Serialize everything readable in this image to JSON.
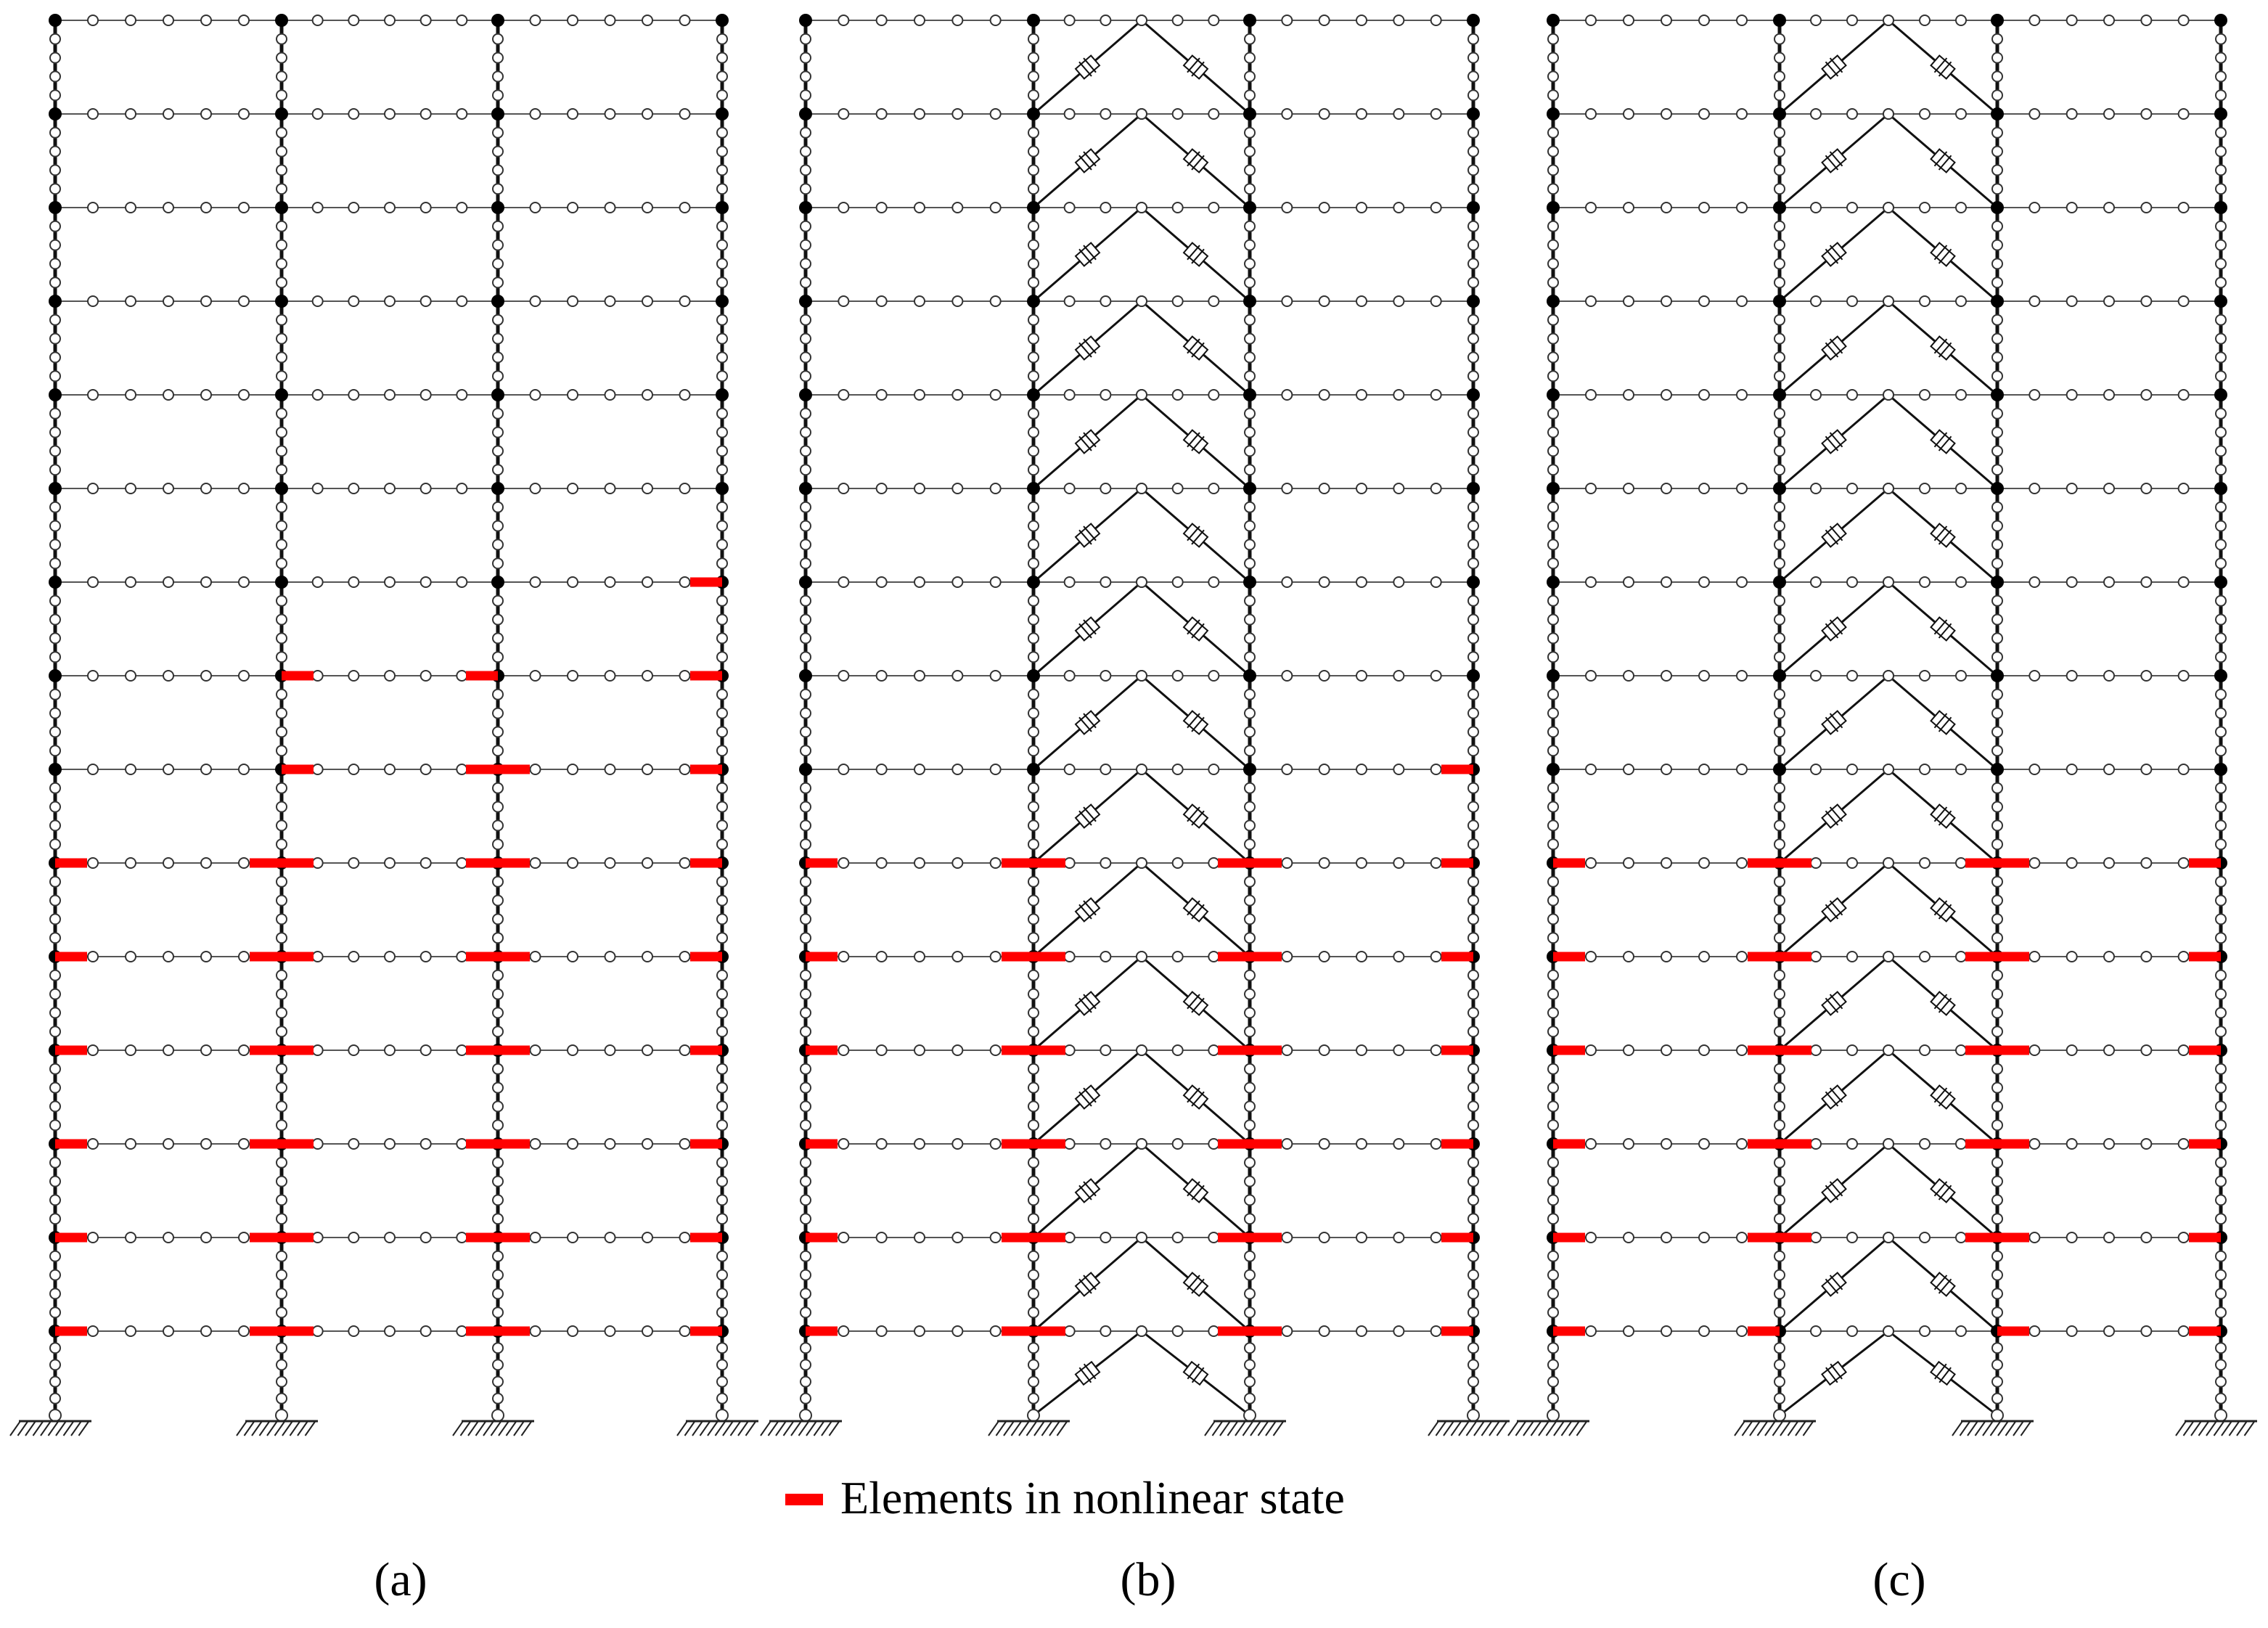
{
  "figure": {
    "legend": {
      "label": "Elements in nonlinear state",
      "swatch_color": "#ff0000"
    },
    "panels": [
      {
        "id": "a",
        "caption": "(a)",
        "braced": false,
        "nonlinear_segments": [
          {
            "story": 6,
            "col": 3,
            "side": "L"
          },
          {
            "story": 7,
            "col": 1,
            "side": "R"
          },
          {
            "story": 7,
            "col": 2,
            "side": "L"
          },
          {
            "story": 7,
            "col": 3,
            "side": "L"
          },
          {
            "story": 8,
            "col": 1,
            "side": "R"
          },
          {
            "story": 8,
            "col": 2,
            "side": "B"
          },
          {
            "story": 8,
            "col": 3,
            "side": "L"
          },
          {
            "story": 9,
            "col": 0,
            "side": "R"
          },
          {
            "story": 9,
            "col": 1,
            "side": "B"
          },
          {
            "story": 9,
            "col": 2,
            "side": "B"
          },
          {
            "story": 9,
            "col": 3,
            "side": "L"
          },
          {
            "story": 10,
            "col": 0,
            "side": "R"
          },
          {
            "story": 10,
            "col": 1,
            "side": "B"
          },
          {
            "story": 10,
            "col": 2,
            "side": "B"
          },
          {
            "story": 10,
            "col": 3,
            "side": "L"
          },
          {
            "story": 11,
            "col": 0,
            "side": "R"
          },
          {
            "story": 11,
            "col": 1,
            "side": "B"
          },
          {
            "story": 11,
            "col": 2,
            "side": "B"
          },
          {
            "story": 11,
            "col": 3,
            "side": "L"
          },
          {
            "story": 12,
            "col": 0,
            "side": "R"
          },
          {
            "story": 12,
            "col": 1,
            "side": "B"
          },
          {
            "story": 12,
            "col": 2,
            "side": "B"
          },
          {
            "story": 12,
            "col": 3,
            "side": "L"
          },
          {
            "story": 13,
            "col": 0,
            "side": "R"
          },
          {
            "story": 13,
            "col": 1,
            "side": "B"
          },
          {
            "story": 13,
            "col": 2,
            "side": "B"
          },
          {
            "story": 13,
            "col": 3,
            "side": "L"
          },
          {
            "story": 14,
            "col": 0,
            "side": "R"
          },
          {
            "story": 14,
            "col": 1,
            "side": "B"
          },
          {
            "story": 14,
            "col": 2,
            "side": "B"
          },
          {
            "story": 14,
            "col": 3,
            "side": "L"
          }
        ]
      },
      {
        "id": "b",
        "caption": "(b)",
        "braced": true,
        "nonlinear_segments": [
          {
            "story": 8,
            "col": 3,
            "side": "L"
          },
          {
            "story": 9,
            "col": 0,
            "side": "R"
          },
          {
            "story": 9,
            "col": 1,
            "side": "B"
          },
          {
            "story": 9,
            "col": 2,
            "side": "B"
          },
          {
            "story": 9,
            "col": 3,
            "side": "L"
          },
          {
            "story": 10,
            "col": 0,
            "side": "R"
          },
          {
            "story": 10,
            "col": 1,
            "side": "B"
          },
          {
            "story": 10,
            "col": 2,
            "side": "B"
          },
          {
            "story": 10,
            "col": 3,
            "side": "L"
          },
          {
            "story": 11,
            "col": 0,
            "side": "R"
          },
          {
            "story": 11,
            "col": 1,
            "side": "B"
          },
          {
            "story": 11,
            "col": 2,
            "side": "B"
          },
          {
            "story": 11,
            "col": 3,
            "side": "L"
          },
          {
            "story": 12,
            "col": 0,
            "side": "R"
          },
          {
            "story": 12,
            "col": 1,
            "side": "B"
          },
          {
            "story": 12,
            "col": 2,
            "side": "B"
          },
          {
            "story": 12,
            "col": 3,
            "side": "L"
          },
          {
            "story": 13,
            "col": 0,
            "side": "R"
          },
          {
            "story": 13,
            "col": 1,
            "side": "B"
          },
          {
            "story": 13,
            "col": 2,
            "side": "B"
          },
          {
            "story": 13,
            "col": 3,
            "side": "L"
          },
          {
            "story": 14,
            "col": 0,
            "side": "R"
          },
          {
            "story": 14,
            "col": 1,
            "side": "B"
          },
          {
            "story": 14,
            "col": 2,
            "side": "B"
          },
          {
            "story": 14,
            "col": 3,
            "side": "L"
          }
        ]
      },
      {
        "id": "c",
        "caption": "(c)",
        "braced": true,
        "nonlinear_segments": [
          {
            "story": 9,
            "col": 0,
            "side": "R"
          },
          {
            "story": 9,
            "col": 1,
            "side": "B"
          },
          {
            "story": 9,
            "col": 2,
            "side": "B"
          },
          {
            "story": 9,
            "col": 3,
            "side": "L"
          },
          {
            "story": 10,
            "col": 0,
            "side": "R"
          },
          {
            "story": 10,
            "col": 1,
            "side": "B"
          },
          {
            "story": 10,
            "col": 2,
            "side": "B"
          },
          {
            "story": 10,
            "col": 3,
            "side": "L"
          },
          {
            "story": 11,
            "col": 0,
            "side": "R"
          },
          {
            "story": 11,
            "col": 1,
            "side": "B"
          },
          {
            "story": 11,
            "col": 2,
            "side": "B"
          },
          {
            "story": 11,
            "col": 3,
            "side": "L"
          },
          {
            "story": 12,
            "col": 0,
            "side": "R"
          },
          {
            "story": 12,
            "col": 1,
            "side": "B"
          },
          {
            "story": 12,
            "col": 2,
            "side": "B"
          },
          {
            "story": 12,
            "col": 3,
            "side": "L"
          },
          {
            "story": 13,
            "col": 0,
            "side": "R"
          },
          {
            "story": 13,
            "col": 1,
            "side": "B"
          },
          {
            "story": 13,
            "col": 2,
            "side": "B"
          },
          {
            "story": 13,
            "col": 3,
            "side": "L"
          },
          {
            "story": 14,
            "col": 0,
            "side": "R"
          },
          {
            "story": 14,
            "col": 1,
            "side": "L"
          },
          {
            "story": 14,
            "col": 2,
            "side": "R"
          },
          {
            "story": 14,
            "col": 3,
            "side": "L"
          }
        ]
      }
    ]
  }
}
